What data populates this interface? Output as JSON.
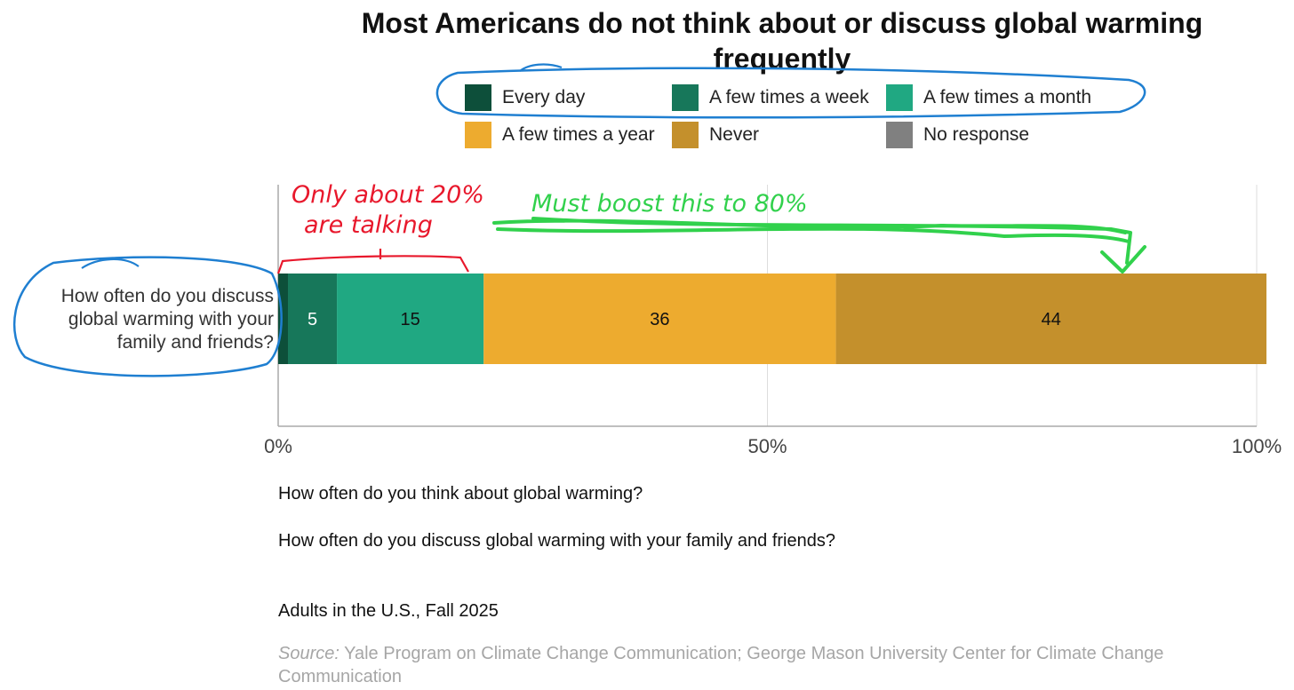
{
  "chart_data": {
    "type": "bar",
    "orientation": "horizontal",
    "stacked": true,
    "title": "Most Americans do not think about or discuss global warming frequently",
    "categories": [
      "How often do you discuss global warming with your family and friends?"
    ],
    "series": [
      {
        "name": "Every day",
        "values": [
          1
        ],
        "label": "",
        "color": "#0d4f3a"
      },
      {
        "name": "A few times a week",
        "values": [
          5
        ],
        "label": "5",
        "color": "#17775a"
      },
      {
        "name": "A few times a month",
        "values": [
          15
        ],
        "label": "15",
        "color": "#20a882"
      },
      {
        "name": "A few times a year",
        "values": [
          36
        ],
        "label": "36",
        "color": "#edab2f"
      },
      {
        "name": "Never",
        "values": [
          44
        ],
        "label": "44",
        "color": "#c4902c"
      },
      {
        "name": "No response",
        "values": [
          0
        ],
        "label": "",
        "color": "#808080"
      }
    ],
    "xlim": [
      0,
      100
    ],
    "xticks": [
      "0%",
      "50%",
      "100%"
    ],
    "grid": true,
    "legend_position": "top"
  },
  "questions": [
    "How often do you think about global warming?",
    "How often do you discuss global warming with your family and friends?"
  ],
  "population": "Adults in the U.S., Fall 2025",
  "source_label": "Source:",
  "source_text": " Yale Program on Climate Change Communication; George Mason University Center for Climate Change Communication",
  "annotations": {
    "red_line1": "Only about 20%",
    "red_line2": "are talking",
    "green": "Must boost this to 80%",
    "colors": {
      "red": "#e8182c",
      "green": "#31d14c",
      "blue": "#1f7fd1"
    }
  },
  "colors": {
    "grid": "#dddddd",
    "axis": "#aaaaaa",
    "source": "#a6a6a6"
  }
}
